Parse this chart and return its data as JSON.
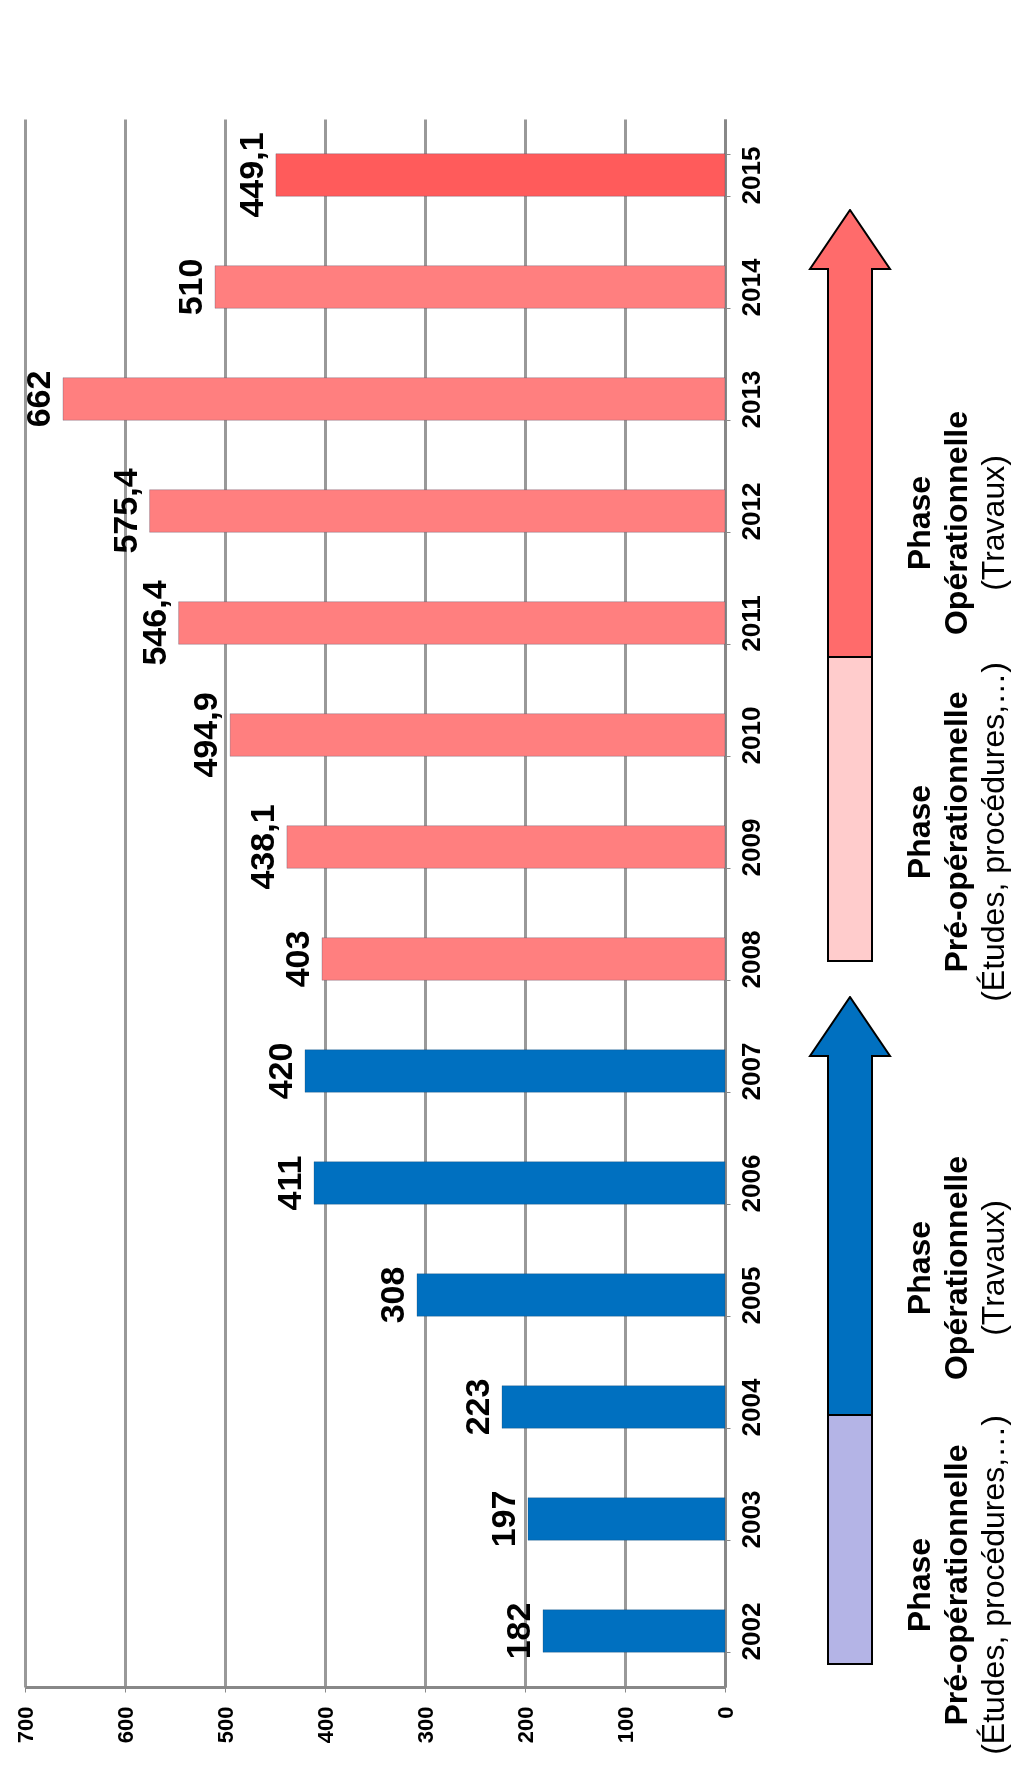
{
  "chart_data": {
    "type": "bar",
    "orientation": "horizontal",
    "categories": [
      "2015",
      "2014",
      "2013",
      "2012",
      "2011",
      "2010",
      "2009",
      "2008",
      "2007",
      "2006",
      "2005",
      "2004",
      "2003",
      "2002"
    ],
    "values": [
      449.1,
      510,
      662,
      575.4,
      546.4,
      494.9,
      438.1,
      403,
      420,
      411,
      308,
      223,
      197,
      182
    ],
    "value_labels": [
      "449,1",
      "510",
      "662",
      "575,4",
      "546,4",
      "494,9",
      "438,1",
      "403",
      "420",
      "411",
      "308",
      "223",
      "197",
      "182"
    ],
    "colors": [
      "#ff5b5b",
      "#ff7f7f",
      "#ff7f7f",
      "#ff7f7f",
      "#ff7f7f",
      "#ff7f7f",
      "#ff7f7f",
      "#ff7f7f",
      "#0070c0",
      "#0070c0",
      "#0070c0",
      "#0070c0",
      "#0070c0",
      "#0070c0"
    ],
    "xlim": [
      700,
      0
    ],
    "xticks": [
      700,
      600,
      500,
      400,
      300,
      200,
      100,
      0
    ],
    "grid": "x",
    "annotations": [
      "Phase\nPré-opérationnelle\n(Études, procédures,…)",
      "Phase\nOpérationnelle\n(Travaux)",
      "Phase\nPré-opérationnelle\n(Études, procédures,…)",
      "Phase\nOpérationnelle\n(Travaux)"
    ]
  }
}
